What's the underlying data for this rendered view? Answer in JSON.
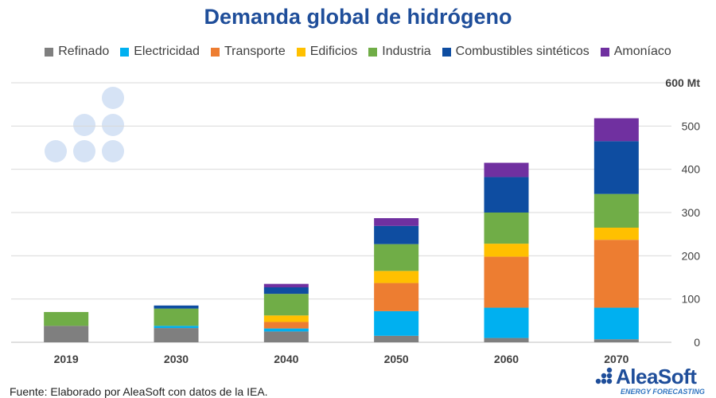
{
  "title": "Demanda global de hidrógeno",
  "footer": "Fuente: Elaborado por AleaSoft con datos de la IEA.",
  "logo": {
    "name": "AleaSoft",
    "tagline": "ENERGY FORECASTING"
  },
  "chart_data": {
    "type": "bar",
    "stacked": true,
    "categories": [
      "2019",
      "2030",
      "2040",
      "2050",
      "2060",
      "2070"
    ],
    "series": [
      {
        "name": "Refinado",
        "color": "#7f7f7f",
        "values": [
          38,
          33,
          25,
          15,
          10,
          7
        ]
      },
      {
        "name": "Electricidad",
        "color": "#00b0f0",
        "values": [
          0,
          5,
          7,
          57,
          70,
          73
        ]
      },
      {
        "name": "Transporte",
        "color": "#ed7d31",
        "values": [
          0,
          0,
          15,
          65,
          118,
          157
        ]
      },
      {
        "name": "Edificios",
        "color": "#ffc000",
        "values": [
          0,
          0,
          15,
          28,
          30,
          28
        ]
      },
      {
        "name": "Industria",
        "color": "#70ad47",
        "values": [
          32,
          40,
          50,
          62,
          72,
          78
        ]
      },
      {
        "name": "Combustibles sintéticos",
        "color": "#0e4da1",
        "values": [
          0,
          7,
          15,
          42,
          82,
          122
        ]
      },
      {
        "name": "Amoníaco",
        "color": "#7030a0",
        "values": [
          0,
          0,
          8,
          18,
          33,
          53
        ]
      }
    ],
    "ylim": [
      0,
      600
    ],
    "yticks": [
      "0",
      "100",
      "200",
      "300",
      "400",
      "500",
      "600 Mt"
    ],
    "ytick_values": [
      0,
      100,
      200,
      300,
      400,
      500,
      600
    ],
    "y_axis_side": "right",
    "grid": true,
    "legend_position": "top"
  }
}
